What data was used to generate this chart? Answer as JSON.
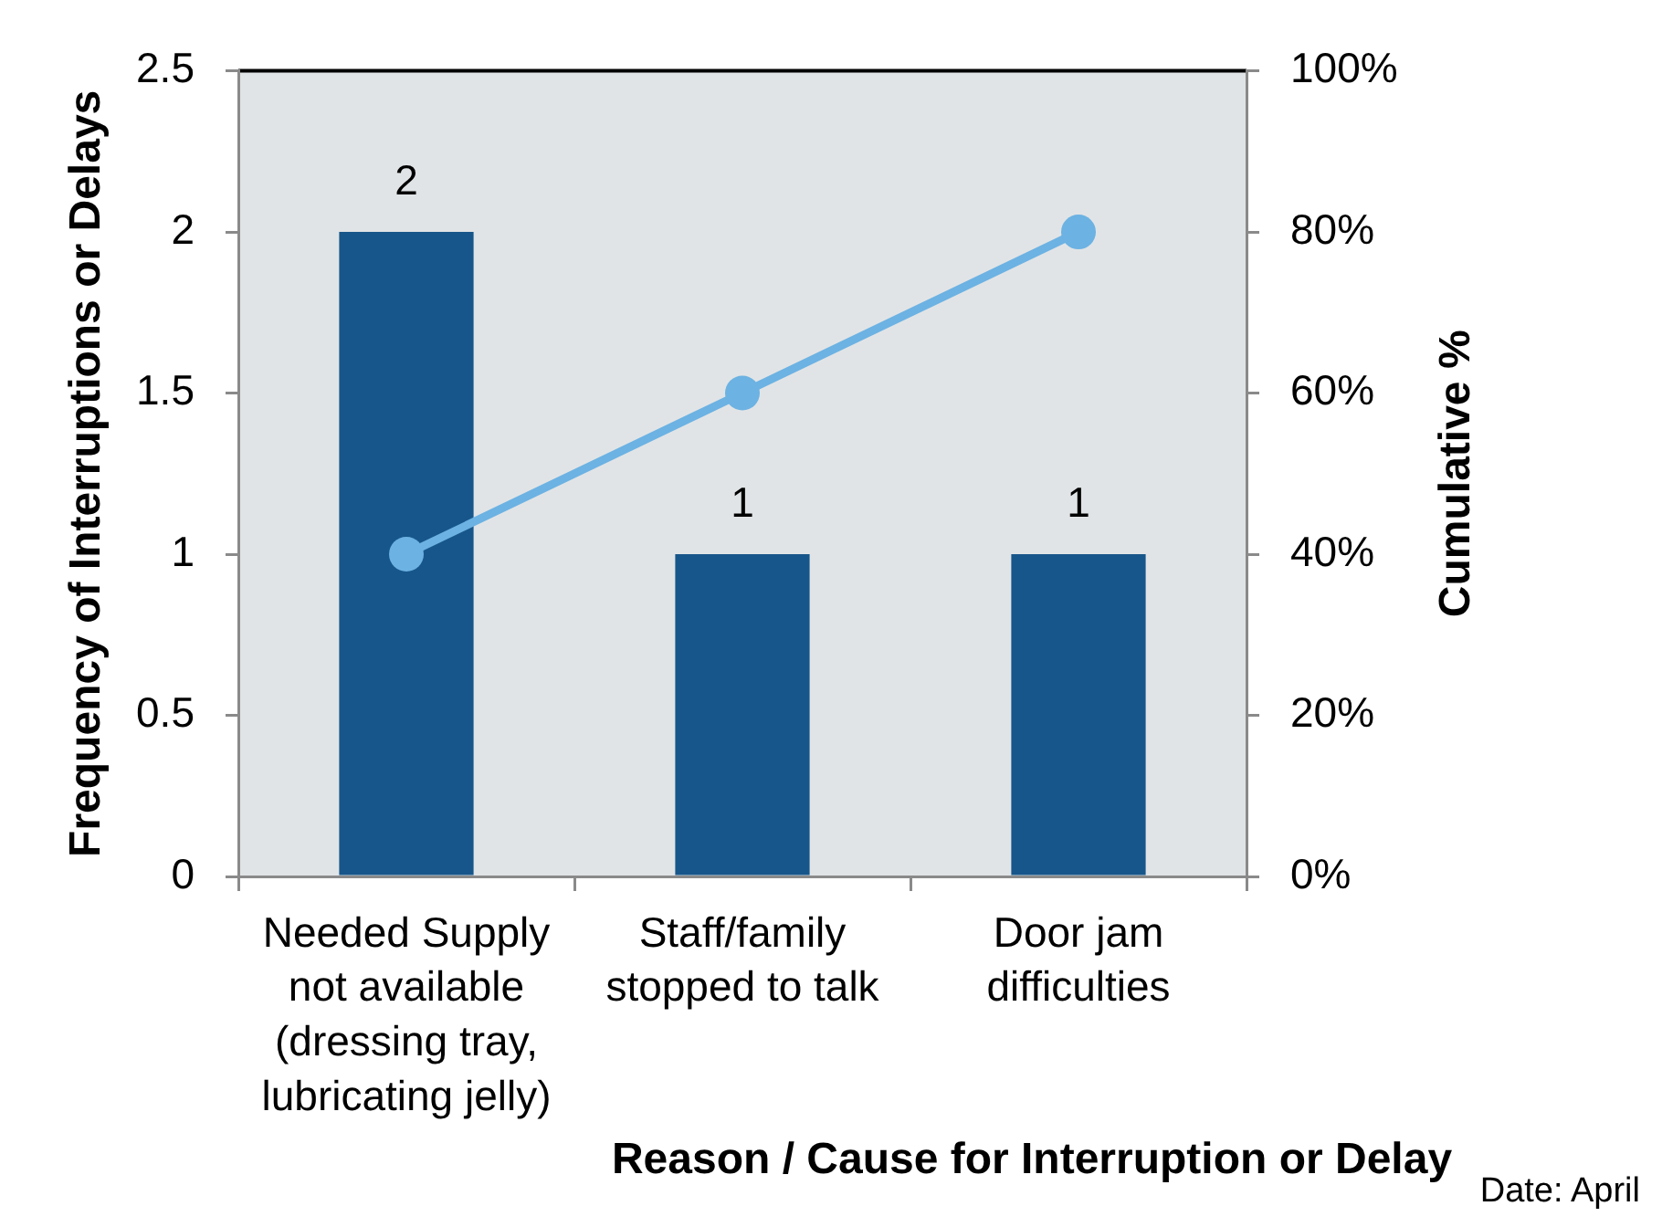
{
  "chart_data": {
    "type": "bar",
    "categories": [
      "Needed Supply not available (dressing tray, lubricating jelly)",
      "Staff/family stopped to talk",
      "Door jam difficulties"
    ],
    "xlabel": "Reason / Cause for Interruption or Delay",
    "ylabel": "Frequency of Interruptions or Delays",
    "y2label": "Cumulative %",
    "ylim": [
      0,
      2.5
    ],
    "yticks": [
      0,
      0.5,
      1,
      1.5,
      2,
      2.5
    ],
    "y2lim": [
      0,
      100
    ],
    "y2ticks": [
      {
        "value": 0,
        "label": "0%"
      },
      {
        "value": 20,
        "label": "20%"
      },
      {
        "value": 40,
        "label": "40%"
      },
      {
        "value": 60,
        "label": "60%"
      },
      {
        "value": 80,
        "label": "80%"
      },
      {
        "value": 100,
        "label": "100%"
      }
    ],
    "series": [
      {
        "color": "#17568a",
        "values": [
          2,
          1,
          1
        ],
        "value_labels": [
          "2",
          "1",
          "1"
        ]
      },
      {
        "type": "line",
        "axis": "y2",
        "color": "#6cb2e3",
        "marker": "circle",
        "values": [
          40,
          60,
          80
        ]
      }
    ],
    "grid": false,
    "legend": false,
    "annotations": [
      "Date: April"
    ]
  }
}
